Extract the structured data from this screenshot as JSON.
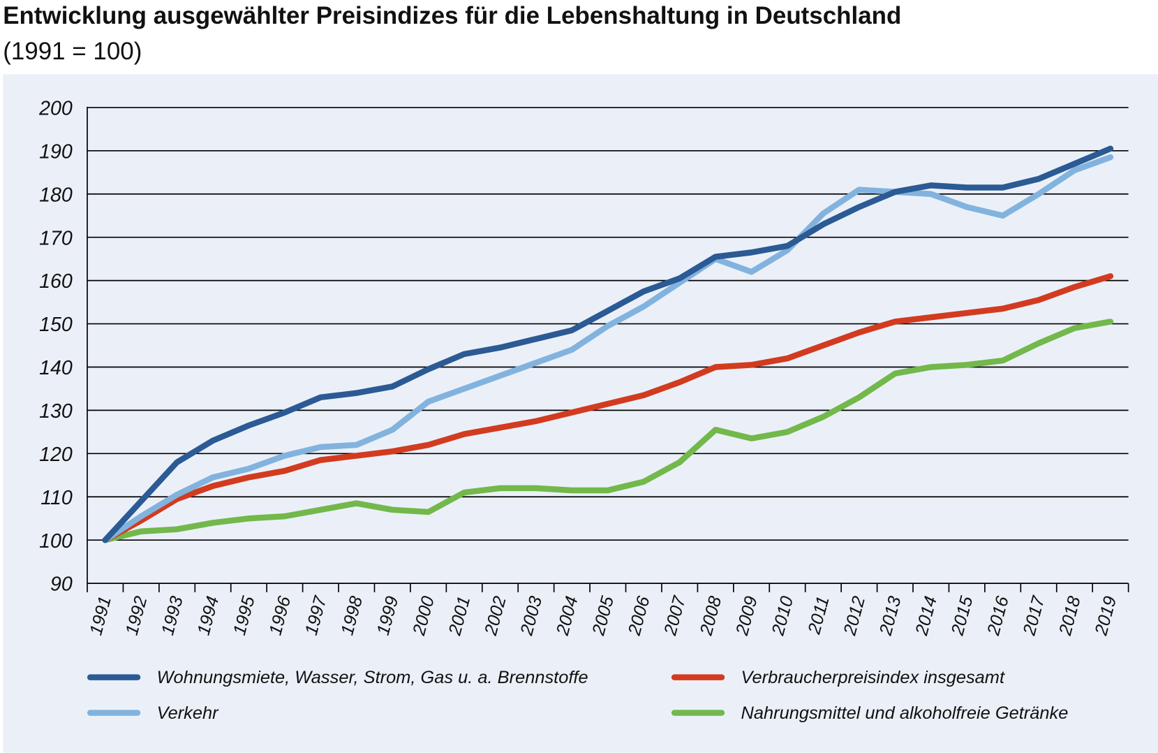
{
  "chart_data": {
    "type": "line",
    "title": "Entwicklung ausgewählter Preisindizes für die Lebenshaltung in Deutschland",
    "subtitle": "(1991 = 100)",
    "categories": [
      "1991",
      "1992",
      "1993",
      "1994",
      "1995",
      "1996",
      "1997",
      "1998",
      "1999",
      "2000",
      "2001",
      "2002",
      "2003",
      "2004",
      "2005",
      "2006",
      "2007",
      "2008",
      "2009",
      "2010",
      "2011",
      "2012",
      "2013",
      "2014",
      "2015",
      "2016",
      "2017",
      "2018",
      "2019"
    ],
    "series": [
      {
        "name": "Wohnungsmiete, Wasser, Strom, Gas u. a. Brennstoffe",
        "color": "#2b5a94",
        "values": [
          100,
          109,
          118,
          123,
          126.5,
          129.5,
          133,
          134,
          135.5,
          139.5,
          143,
          144.5,
          146.5,
          148.5,
          153,
          157.5,
          160.5,
          165.5,
          166.5,
          168,
          173,
          177,
          180.5,
          182,
          181.5,
          181.5,
          183.5,
          187,
          190.5
        ]
      },
      {
        "name": "Verkehr",
        "color": "#82b3de",
        "values": [
          100,
          105.5,
          110.5,
          114.5,
          116.5,
          119.5,
          121.5,
          122,
          125.5,
          132,
          135,
          138,
          141,
          144,
          149.5,
          154,
          159.5,
          165,
          162,
          167,
          175.5,
          181,
          180.5,
          180,
          177,
          175,
          180,
          185.5,
          188.5
        ]
      },
      {
        "name": "Verbraucherpreisindex insgesamt",
        "color": "#d23b1f",
        "values": [
          100,
          104.5,
          109.5,
          112.5,
          114.5,
          116,
          118.5,
          119.5,
          120.5,
          122,
          124.5,
          126,
          127.5,
          129.5,
          131.5,
          133.5,
          136.5,
          140,
          140.5,
          142,
          145,
          148,
          150.5,
          151.5,
          152.5,
          153.5,
          155.5,
          158.5,
          161
        ]
      },
      {
        "name": "Nahrungsmittel und alkoholfreie Getränke",
        "color": "#72b84b",
        "values": [
          100,
          102,
          102.5,
          104,
          105,
          105.5,
          107,
          108.5,
          107,
          106.5,
          111,
          112,
          112,
          111.5,
          111.5,
          113.5,
          118,
          125.5,
          123.5,
          125,
          128.5,
          133,
          138.5,
          140,
          140.5,
          141.5,
          145.5,
          149,
          150.5
        ]
      }
    ],
    "ylim": [
      90,
      200
    ],
    "yticks": [
      90,
      100,
      110,
      120,
      130,
      140,
      150,
      160,
      170,
      180,
      190,
      200
    ],
    "grid": true
  }
}
